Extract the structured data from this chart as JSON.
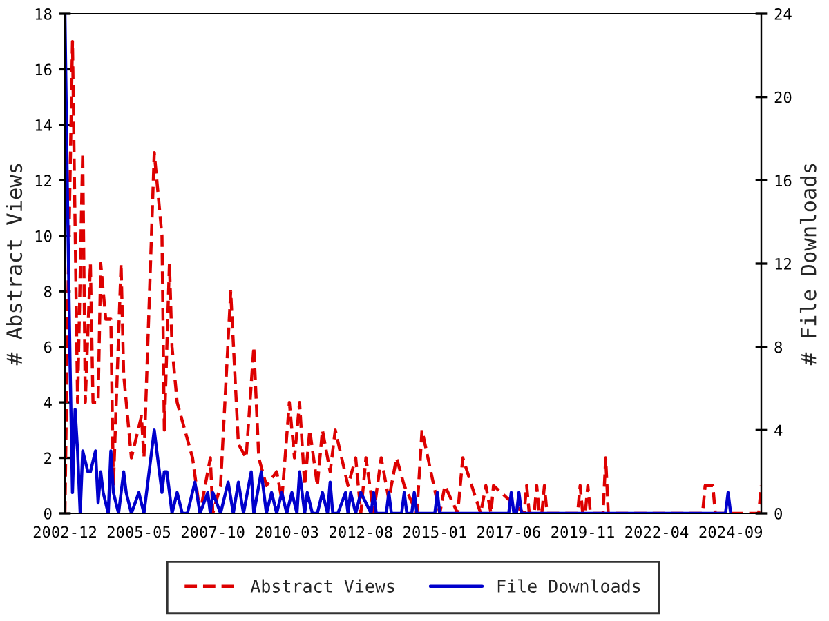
{
  "chart_data": {
    "type": "line",
    "xlim": [
      "2002-12",
      "2025-09"
    ],
    "xticks": [
      "2002-12",
      "2005-05",
      "2007-10",
      "2010-03",
      "2012-08",
      "2015-01",
      "2017-06",
      "2019-11",
      "2022-04",
      "2024-09"
    ],
    "ylim": [
      0,
      18
    ],
    "yticks": [
      0,
      2,
      4,
      6,
      8,
      10,
      12,
      14,
      16,
      18
    ],
    "y2lim": [
      0,
      24
    ],
    "y2ticks": [
      0,
      4,
      8,
      12,
      16,
      20,
      24
    ],
    "ylabel": "# Abstract Views",
    "y2label": "# File Downloads",
    "legend": "bottom",
    "grid": false,
    "series": [
      {
        "name": "Abstract Views",
        "color": "#dd0000",
        "line_style": "dashed",
        "x": [
          "2002-12",
          "2003-01",
          "2003-03",
          "2003-05",
          "2003-07",
          "2003-08",
          "2003-10",
          "2003-11",
          "2004-01",
          "2004-02",
          "2004-04",
          "2004-06",
          "2004-07",
          "2004-10",
          "2004-11",
          "2005-02",
          "2005-06",
          "2005-07",
          "2005-11",
          "2006-02",
          "2006-03",
          "2006-05",
          "2006-06",
          "2006-08",
          "2006-11",
          "2007-02",
          "2007-05",
          "2007-09",
          "2007-10",
          "2008-01",
          "2008-05",
          "2008-08",
          "2008-11",
          "2009-02",
          "2009-04",
          "2009-07",
          "2009-11",
          "2010-01",
          "2010-04",
          "2010-06",
          "2010-08",
          "2010-10",
          "2010-12",
          "2011-03",
          "2011-05",
          "2011-08",
          "2011-10",
          "2012-03",
          "2012-06",
          "2012-08",
          "2012-10",
          "2013-01",
          "2013-04",
          "2013-07",
          "2013-10",
          "2014-01",
          "2014-06",
          "2014-08",
          "2015-03",
          "2015-05",
          "2015-10",
          "2015-12",
          "2016-07",
          "2016-09",
          "2016-11",
          "2016-12",
          "2017-12",
          "2018-01",
          "2018-02",
          "2018-04",
          "2018-05",
          "2018-06",
          "2018-07",
          "2018-08",
          "2018-09",
          "2019-09",
          "2019-10",
          "2019-11",
          "2019-12",
          "2020-01",
          "2020-02",
          "2020-07",
          "2020-08",
          "2020-09",
          "2023-10",
          "2023-11",
          "2024-02",
          "2024-03",
          "2025-08",
          "2025-09"
        ],
        "values": [
          0,
          7,
          17,
          4,
          13,
          4,
          9,
          4,
          4,
          9,
          7,
          7,
          1,
          9,
          5,
          2,
          3.5,
          2,
          13,
          10,
          3,
          9,
          6,
          4,
          3,
          2,
          0,
          2,
          0,
          1,
          8,
          2.5,
          2,
          6,
          2,
          1,
          1.5,
          0.5,
          4,
          2,
          4,
          1,
          3,
          1,
          3,
          1.5,
          3,
          1,
          2,
          0,
          2,
          0,
          2,
          0.5,
          2,
          1,
          0,
          3,
          0,
          1,
          0,
          2,
          0,
          1,
          0,
          1,
          0,
          1,
          0,
          0,
          1,
          0,
          0,
          1,
          0,
          0,
          1,
          0,
          0,
          1,
          0,
          0,
          2,
          0,
          0,
          1,
          1,
          0,
          0,
          1
        ]
      },
      {
        "name": "File Downloads",
        "color": "#0000cc",
        "line_style": "solid",
        "axis": "y2",
        "x": [
          "2002-12",
          "2003-01",
          "2003-02",
          "2003-03",
          "2003-04",
          "2003-05",
          "2003-06",
          "2003-07",
          "2003-09",
          "2003-10",
          "2003-12",
          "2004-01",
          "2004-02",
          "2004-03",
          "2004-05",
          "2004-06",
          "2004-07",
          "2004-09",
          "2004-11",
          "2004-12",
          "2005-02",
          "2005-05",
          "2005-07",
          "2005-11",
          "2005-12",
          "2006-02",
          "2006-03",
          "2006-04",
          "2006-06",
          "2006-08",
          "2006-10",
          "2006-12",
          "2007-03",
          "2007-05",
          "2007-08",
          "2007-09",
          "2007-10",
          "2008-01",
          "2008-04",
          "2008-06",
          "2008-08",
          "2008-10",
          "2009-01",
          "2009-02",
          "2009-05",
          "2009-07",
          "2009-09",
          "2009-11",
          "2010-01",
          "2010-03",
          "2010-05",
          "2010-07",
          "2010-08",
          "2010-10",
          "2010-11",
          "2011-01",
          "2011-03",
          "2011-05",
          "2011-07",
          "2011-08",
          "2011-09",
          "2011-11",
          "2012-02",
          "2012-03",
          "2012-04",
          "2012-06",
          "2012-08",
          "2012-12",
          "2013-01",
          "2013-02",
          "2013-06",
          "2013-07",
          "2013-08",
          "2013-12",
          "2014-01",
          "2014-02",
          "2014-04",
          "2014-05",
          "2014-06",
          "2015-01",
          "2015-02",
          "2015-03",
          "2017-06",
          "2017-07",
          "2017-08",
          "2017-09",
          "2017-10",
          "2017-11",
          "2024-07",
          "2024-08",
          "2024-09"
        ],
        "values": [
          24,
          15,
          7,
          1,
          5,
          3,
          0,
          3,
          2,
          2,
          3,
          0.5,
          2,
          1,
          0,
          3,
          1,
          0,
          2,
          1,
          0,
          1,
          0,
          4,
          3,
          1,
          2,
          2,
          0,
          1,
          0,
          0,
          1.5,
          0,
          1,
          0,
          1,
          0,
          1.5,
          0,
          1.5,
          0,
          2,
          0,
          2,
          0,
          1,
          0,
          1,
          0,
          1,
          0,
          2,
          0,
          1,
          0,
          0,
          1,
          0,
          1.5,
          0,
          0,
          1,
          0,
          1,
          0,
          1,
          0,
          1,
          0,
          0,
          1,
          0,
          0,
          1,
          0,
          0,
          1,
          0,
          0,
          1,
          0,
          0,
          1,
          0,
          0,
          1,
          0,
          0,
          1,
          0
        ]
      }
    ]
  }
}
